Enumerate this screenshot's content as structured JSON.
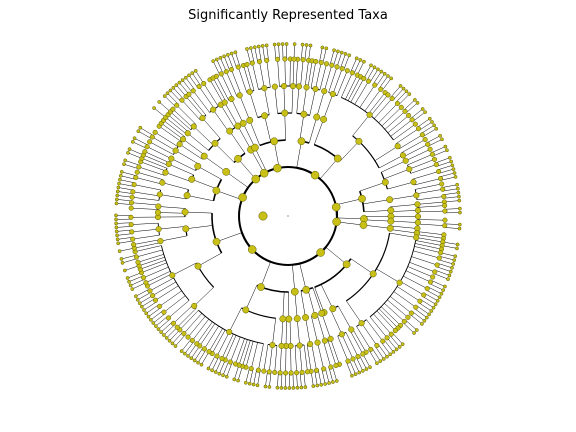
{
  "figure": {
    "title": "Significantly Represented Taxa"
  },
  "chart_data": {
    "type": "circular-cladogram",
    "node_color": "#c8c016",
    "node_edge_color": "#5a5a00",
    "edge_color": "#000000",
    "center_point": true
  }
}
